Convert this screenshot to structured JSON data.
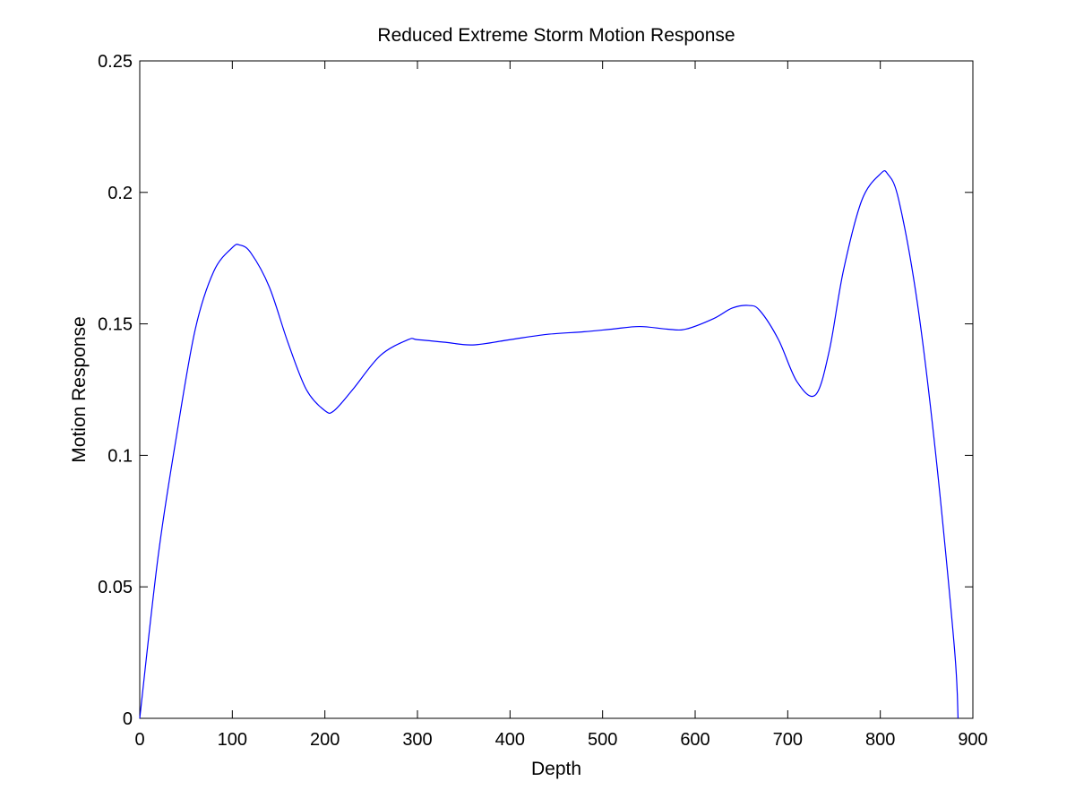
{
  "chart_data": {
    "type": "line",
    "title": "Reduced Extreme Storm Motion Response",
    "xlabel": "Depth",
    "ylabel": "Motion Response",
    "xlim": [
      0,
      900
    ],
    "ylim": [
      0,
      0.25
    ],
    "xticks": [
      0,
      100,
      200,
      300,
      400,
      500,
      600,
      700,
      800,
      900
    ],
    "xtick_labels": [
      "0",
      "100",
      "200",
      "300",
      "400",
      "500",
      "600",
      "700",
      "800",
      "900"
    ],
    "yticks": [
      0,
      0.05,
      0.1,
      0.15,
      0.2,
      0.25
    ],
    "ytick_labels": [
      "0",
      "0.05",
      "0.1",
      "0.15",
      "0.2",
      "0.25"
    ],
    "grid": false,
    "legend": "none",
    "series": [
      {
        "color": "#0000ff",
        "x": [
          0,
          20,
          40,
          60,
          80,
          100,
          108,
          120,
          140,
          160,
          180,
          200,
          210,
          230,
          260,
          290,
          300,
          330,
          360,
          400,
          440,
          480,
          510,
          540,
          570,
          590,
          620,
          640,
          658,
          670,
          690,
          710,
          730,
          745,
          760,
          780,
          800,
          808,
          820,
          840,
          860,
          880,
          884
        ],
        "y": [
          0,
          0.062,
          0.108,
          0.148,
          0.17,
          0.179,
          0.18,
          0.177,
          0.164,
          0.143,
          0.125,
          0.117,
          0.117,
          0.125,
          0.138,
          0.144,
          0.144,
          0.143,
          0.142,
          0.144,
          0.146,
          0.147,
          0.148,
          0.149,
          0.148,
          0.148,
          0.152,
          0.156,
          0.157,
          0.155,
          0.144,
          0.128,
          0.123,
          0.14,
          0.17,
          0.197,
          0.207,
          0.207,
          0.197,
          0.158,
          0.1,
          0.027,
          0
        ]
      }
    ]
  }
}
